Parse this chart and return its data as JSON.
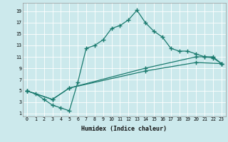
{
  "xlabel": "Humidex (Indice chaleur)",
  "bg_color": "#cce9ec",
  "grid_color": "#ffffff",
  "line_color": "#1a7a6e",
  "xlim": [
    -0.5,
    23.5
  ],
  "ylim": [
    0.5,
    20.5
  ],
  "xticks": [
    0,
    1,
    2,
    3,
    4,
    5,
    6,
    7,
    8,
    9,
    10,
    11,
    12,
    13,
    14,
    15,
    16,
    17,
    18,
    19,
    20,
    21,
    22,
    23
  ],
  "yticks": [
    1,
    3,
    5,
    7,
    9,
    11,
    13,
    15,
    17,
    19
  ],
  "line1_x": [
    0,
    1,
    2,
    3,
    4,
    5,
    6,
    7,
    8,
    9,
    10,
    11,
    12,
    13,
    14,
    15,
    16,
    17,
    18,
    19,
    20,
    21,
    22,
    23
  ],
  "line1_y": [
    5,
    4.5,
    3.5,
    2.5,
    2.0,
    1.5,
    6.5,
    12.5,
    13.0,
    14.0,
    16.0,
    16.5,
    17.5,
    19.2,
    17.0,
    15.5,
    14.5,
    12.5,
    12.0,
    12.0,
    11.5,
    11.0,
    11.0,
    9.8
  ],
  "line2_x": [
    0,
    3,
    5,
    14,
    20,
    21,
    22,
    23
  ],
  "line2_y": [
    5,
    3.5,
    5.5,
    9.0,
    11.0,
    11.0,
    10.8,
    9.8
  ],
  "line3_x": [
    0,
    3,
    5,
    14,
    20,
    23
  ],
  "line3_y": [
    5,
    3.5,
    5.5,
    8.5,
    10.0,
    9.8
  ]
}
